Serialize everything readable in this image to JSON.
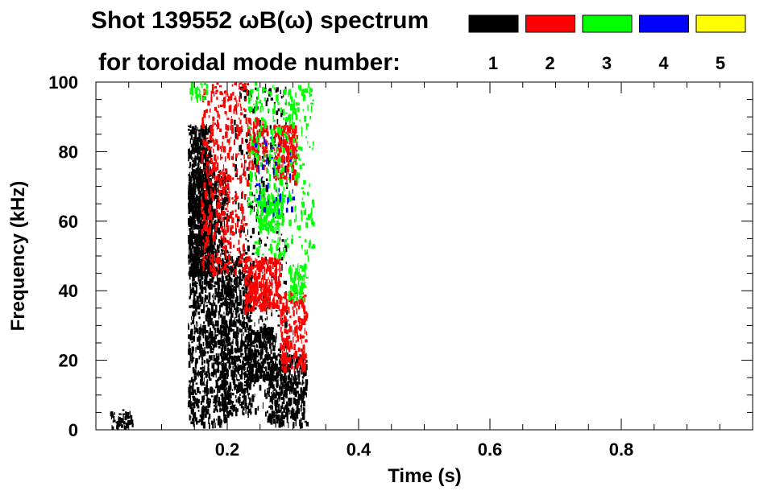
{
  "chart_data": {
    "type": "heatmap",
    "title_line1": "Shot 139552 ωB(ω) spectrum",
    "title_line2": "for toroidal mode number:",
    "xlabel": "Time (s)",
    "ylabel": "Frequency (kHz)",
    "xlim": [
      0.0,
      1.0
    ],
    "ylim": [
      0,
      100
    ],
    "x_ticks": [
      0.2,
      0.4,
      0.6,
      0.8
    ],
    "x_tick_labels": [
      "0.2",
      "0.4",
      "0.6",
      "0.8"
    ],
    "y_ticks": [
      0,
      20,
      40,
      60,
      80,
      100
    ],
    "y_tick_labels": [
      "0",
      "20",
      "40",
      "60",
      "80",
      "100"
    ],
    "legend": [
      {
        "label": "1",
        "color": "#000000"
      },
      {
        "label": "2",
        "color": "#ff0000"
      },
      {
        "label": "3",
        "color": "#00ff00"
      },
      {
        "label": "4",
        "color": "#0000ff"
      },
      {
        "label": "5",
        "color": "#ffff00"
      }
    ],
    "series": [
      {
        "mode": "1",
        "color": "#000000",
        "regions": [
          {
            "t": [
              0.02,
              0.055
            ],
            "f": [
              1,
              6
            ],
            "density": 0.55
          },
          {
            "t": [
              0.14,
              0.175
            ],
            "f": [
              45,
              88
            ],
            "density": 0.85
          },
          {
            "t": [
              0.14,
              0.2
            ],
            "f": [
              2,
              75
            ],
            "density": 0.45
          },
          {
            "t": [
              0.19,
              0.235
            ],
            "f": [
              5,
              50
            ],
            "density": 0.5
          },
          {
            "t": [
              0.23,
              0.27
            ],
            "f": [
              15,
              30
            ],
            "density": 0.8
          },
          {
            "t": [
              0.26,
              0.32
            ],
            "f": [
              2,
              22
            ],
            "density": 0.55
          },
          {
            "t": [
              0.21,
              0.29
            ],
            "f": [
              5,
              100
            ],
            "density": 0.08
          }
        ]
      },
      {
        "mode": "2",
        "color": "#ff0000",
        "regions": [
          {
            "t": [
              0.16,
              0.23
            ],
            "f": [
              45,
              100
            ],
            "density": 0.2
          },
          {
            "t": [
              0.225,
              0.28
            ],
            "f": [
              35,
              50
            ],
            "density": 0.65
          },
          {
            "t": [
              0.27,
              0.305
            ],
            "f": [
              72,
              88
            ],
            "density": 0.55
          },
          {
            "t": [
              0.28,
              0.32
            ],
            "f": [
              18,
              40
            ],
            "density": 0.4
          },
          {
            "t": [
              0.23,
              0.26
            ],
            "f": [
              75,
              90
            ],
            "density": 0.4
          }
        ]
      },
      {
        "mode": "3",
        "color": "#00ff00",
        "regions": [
          {
            "t": [
              0.14,
              0.17
            ],
            "f": [
              95,
              100
            ],
            "density": 0.35
          },
          {
            "t": [
              0.23,
              0.33
            ],
            "f": [
              50,
              100
            ],
            "density": 0.12
          },
          {
            "t": [
              0.245,
              0.285
            ],
            "f": [
              58,
              68
            ],
            "density": 0.6
          },
          {
            "t": [
              0.29,
              0.32
            ],
            "f": [
              38,
              48
            ],
            "density": 0.4
          }
        ]
      },
      {
        "mode": "4",
        "color": "#0000ff",
        "regions": [
          {
            "t": [
              0.24,
              0.3
            ],
            "f": [
              60,
              85
            ],
            "density": 0.05
          }
        ]
      },
      {
        "mode": "5",
        "color": "#ffff00",
        "regions": []
      }
    ]
  }
}
